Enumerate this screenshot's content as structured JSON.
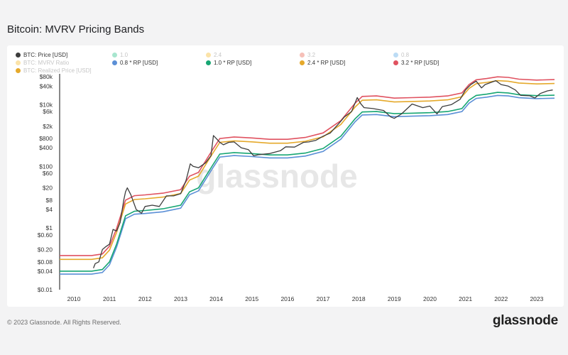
{
  "page_title": "Bitcoin: MVRV Pricing Bands",
  "footer": {
    "copyright": "© 2023 Glassnode. All Rights Reserved.",
    "brand": "glassnode"
  },
  "watermark": "glassnode",
  "legend": [
    {
      "label": "BTC: Price [USD]",
      "color": "#3d3d3d",
      "faded": false
    },
    {
      "label": "1.0",
      "color": "#a8e6cf",
      "faded": true
    },
    {
      "label": "2.4",
      "color": "#fbe3a8",
      "faded": true
    },
    {
      "label": "3.2",
      "color": "#f6c0b8",
      "faded": true
    },
    {
      "label": "0.8",
      "color": "#bcdcf5",
      "faded": true
    },
    {
      "label": "BTC: MVRV Ratio",
      "color": "#fbe3a8",
      "faded": true
    },
    {
      "label": "0.8 * RP [USD]",
      "color": "#5b8fd6",
      "faded": false
    },
    {
      "label": "1.0 * RP [USD]",
      "color": "#17a673",
      "faded": false
    },
    {
      "label": "2.4 * RP [USD]",
      "color": "#e5a92b",
      "faded": false
    },
    {
      "label": "3.2 * RP [USD]",
      "color": "#e05260",
      "faded": false
    },
    {
      "label": "BTC: Realized Price [USD]",
      "color": "#e5a92b",
      "faded": true
    }
  ],
  "chart_data": {
    "type": "line",
    "title": "Bitcoin: MVRV Pricing Bands",
    "yscale": "log",
    "ylim": [
      0.01,
      100000
    ],
    "xlim": [
      2009.6,
      2023.6
    ],
    "y_ticks": [
      {
        "v": 0.01,
        "label": "$0.01"
      },
      {
        "v": 0.04,
        "label": "$0.04"
      },
      {
        "v": 0.08,
        "label": "$0.08"
      },
      {
        "v": 0.2,
        "label": "$0.20"
      },
      {
        "v": 0.6,
        "label": "$0.60"
      },
      {
        "v": 1,
        "label": "$1"
      },
      {
        "v": 4,
        "label": "$4"
      },
      {
        "v": 8,
        "label": "$8"
      },
      {
        "v": 20,
        "label": "$20"
      },
      {
        "v": 60,
        "label": "$60"
      },
      {
        "v": 100,
        "label": "$100"
      },
      {
        "v": 400,
        "label": "$400"
      },
      {
        "v": 800,
        "label": "$800"
      },
      {
        "v": 2000,
        "label": "$2k"
      },
      {
        "v": 6000,
        "label": "$6k"
      },
      {
        "v": 10000,
        "label": "$10k"
      },
      {
        "v": 40000,
        "label": "$40k"
      },
      {
        "v": 80000,
        "label": "$80k"
      }
    ],
    "x_ticks": [
      "2010",
      "2011",
      "2012",
      "2013",
      "2014",
      "2015",
      "2016",
      "2017",
      "2018",
      "2019",
      "2020",
      "2021",
      "2022",
      "2023"
    ],
    "realized_price": {
      "x": [
        2010.5,
        2010.8,
        2011.0,
        2011.2,
        2011.45,
        2011.7,
        2012.0,
        2012.5,
        2013.0,
        2013.25,
        2013.5,
        2013.9,
        2014.1,
        2014.5,
        2015.0,
        2015.5,
        2016.0,
        2016.5,
        2017.0,
        2017.5,
        2017.9,
        2018.1,
        2018.5,
        2019.0,
        2019.5,
        2020.0,
        2020.5,
        2020.9,
        2021.1,
        2021.3,
        2021.6,
        2021.9,
        2022.2,
        2022.5,
        2023.0,
        2023.5
      ],
      "y": [
        0.04,
        0.045,
        0.08,
        0.3,
        2.5,
        3.5,
        3.7,
        4.2,
        5.5,
        15,
        20,
        110,
        250,
        280,
        260,
        235,
        235,
        270,
        380,
        950,
        3500,
        5800,
        6000,
        5100,
        5300,
        5500,
        6000,
        7500,
        14000,
        20000,
        22000,
        25000,
        24000,
        21000,
        19600,
        20300
      ]
    },
    "series": [
      {
        "name": "BTC: Price [USD]",
        "x": [
          2010.55,
          2010.6,
          2010.7,
          2010.8,
          2010.9,
          2011.0,
          2011.1,
          2011.2,
          2011.3,
          2011.4,
          2011.45,
          2011.5,
          2011.6,
          2011.75,
          2011.9,
          2012.0,
          2012.2,
          2012.4,
          2012.6,
          2012.8,
          2013.0,
          2013.15,
          2013.27,
          2013.35,
          2013.5,
          2013.7,
          2013.85,
          2013.92,
          2014.0,
          2014.1,
          2014.2,
          2014.35,
          2014.5,
          2014.7,
          2014.9,
          2015.05,
          2015.2,
          2015.5,
          2015.8,
          2015.95,
          2016.2,
          2016.45,
          2016.6,
          2016.8,
          2017.0,
          2017.2,
          2017.45,
          2017.6,
          2017.8,
          2017.96,
          2018.05,
          2018.15,
          2018.4,
          2018.7,
          2018.9,
          2019.0,
          2019.2,
          2019.5,
          2019.8,
          2020.0,
          2020.2,
          2020.35,
          2020.6,
          2020.85,
          2021.0,
          2021.15,
          2021.3,
          2021.45,
          2021.55,
          2021.85,
          2022.0,
          2022.2,
          2022.4,
          2022.55,
          2022.8,
          2022.95,
          2023.1,
          2023.3,
          2023.45
        ],
        "y": [
          0.05,
          0.07,
          0.08,
          0.2,
          0.25,
          0.3,
          0.9,
          0.8,
          1.5,
          8,
          15,
          20,
          12,
          4,
          3,
          5,
          5.5,
          5,
          11,
          11,
          13,
          35,
          120,
          100,
          90,
          130,
          220,
          1000,
          800,
          600,
          500,
          600,
          620,
          400,
          350,
          220,
          240,
          260,
          320,
          430,
          420,
          600,
          620,
          700,
          950,
          1200,
          2500,
          4000,
          6000,
          17000,
          11000,
          8000,
          7500,
          6500,
          4000,
          3600,
          5000,
          10500,
          8000,
          9000,
          5000,
          8700,
          10000,
          15000,
          30000,
          45000,
          58000,
          35000,
          45000,
          60000,
          45000,
          40000,
          30000,
          20000,
          19500,
          16500,
          23000,
          28000,
          30000
        ]
      },
      {
        "name": "0.8 * RP [USD]",
        "factor": 0.8,
        "color": "#5b8fd6"
      },
      {
        "name": "1.0 * RP [USD]",
        "factor": 1.0,
        "color": "#17a673"
      },
      {
        "name": "2.4 * RP [USD]",
        "factor": 2.4,
        "color": "#e5a92b"
      },
      {
        "name": "3.2 * RP [USD]",
        "factor": 3.2,
        "color": "#e05260"
      }
    ]
  }
}
